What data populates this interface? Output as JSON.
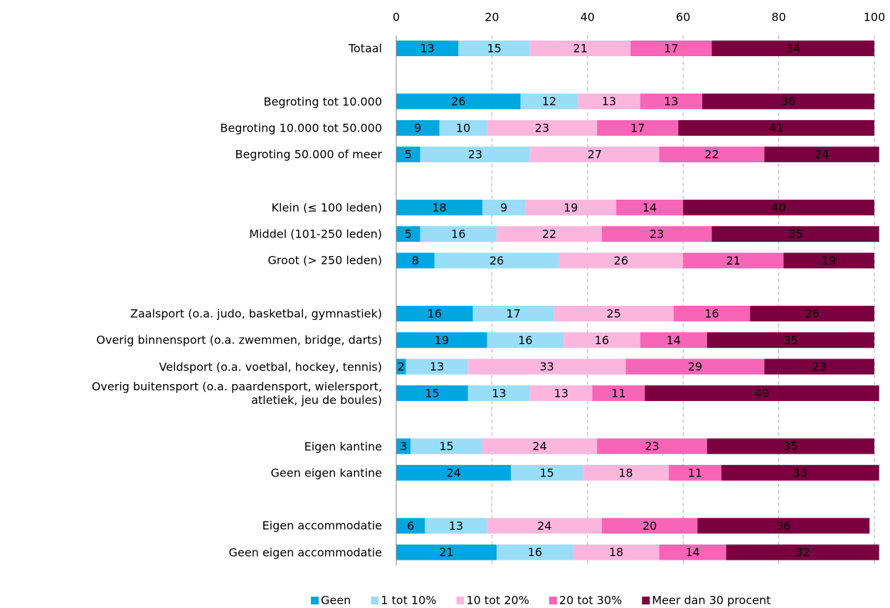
{
  "chart_data": {
    "type": "stacked-bar-horizontal",
    "categories": [
      "Totaal",
      null,
      "Begroting tot 10.000",
      "Begroting 10.000 tot 50.000",
      "Begroting 50.000 of meer",
      null,
      "Klein (≤ 100 leden)",
      "Middel (101-250 leden)",
      "Groot (> 250 leden)",
      null,
      "Zaalsport (o.a. judo, basketbal, gymnastiek)",
      "Overig binnensport (o.a. zwemmen, bridge, darts)",
      "Veldsport (o.a. voetbal, hockey, tennis)",
      "Overig buitensport (o.a. paardensport, wielersport,\natletiek, jeu de boules)",
      null,
      "Eigen kantine",
      "Geen eigen kantine",
      null,
      "Eigen accommodatie",
      "Geen eigen accommodatie"
    ],
    "series": [
      {
        "name": "Geen",
        "color": "#00a6e0",
        "values": [
          13,
          null,
          26,
          9,
          5,
          null,
          18,
          5,
          8,
          null,
          16,
          19,
          2,
          15,
          null,
          3,
          24,
          null,
          6,
          21
        ]
      },
      {
        "name": "1 tot 10%",
        "color": "#99ddf9",
        "values": [
          15,
          null,
          12,
          10,
          23,
          null,
          9,
          16,
          26,
          null,
          17,
          16,
          13,
          13,
          null,
          15,
          15,
          null,
          13,
          16
        ]
      },
      {
        "name": "10 tot 20%",
        "color": "#fbb6de",
        "values": [
          21,
          null,
          13,
          23,
          27,
          null,
          19,
          22,
          26,
          null,
          25,
          16,
          33,
          13,
          null,
          24,
          18,
          null,
          24,
          18
        ]
      },
      {
        "name": "20 tot 30%",
        "color": "#f765b7",
        "values": [
          17,
          null,
          13,
          17,
          22,
          null,
          14,
          23,
          21,
          null,
          16,
          14,
          29,
          11,
          null,
          23,
          11,
          null,
          20,
          14
        ]
      },
      {
        "name": "Meer dan 30 procent",
        "color": "#7a0040",
        "values": [
          34,
          null,
          36,
          41,
          24,
          null,
          40,
          35,
          19,
          null,
          26,
          35,
          23,
          49,
          null,
          35,
          33,
          null,
          36,
          32
        ]
      }
    ],
    "xlim": [
      0,
      100
    ],
    "xticks": [
      0,
      20,
      40,
      60,
      80,
      100
    ],
    "grid": true,
    "legend": "bottom"
  }
}
